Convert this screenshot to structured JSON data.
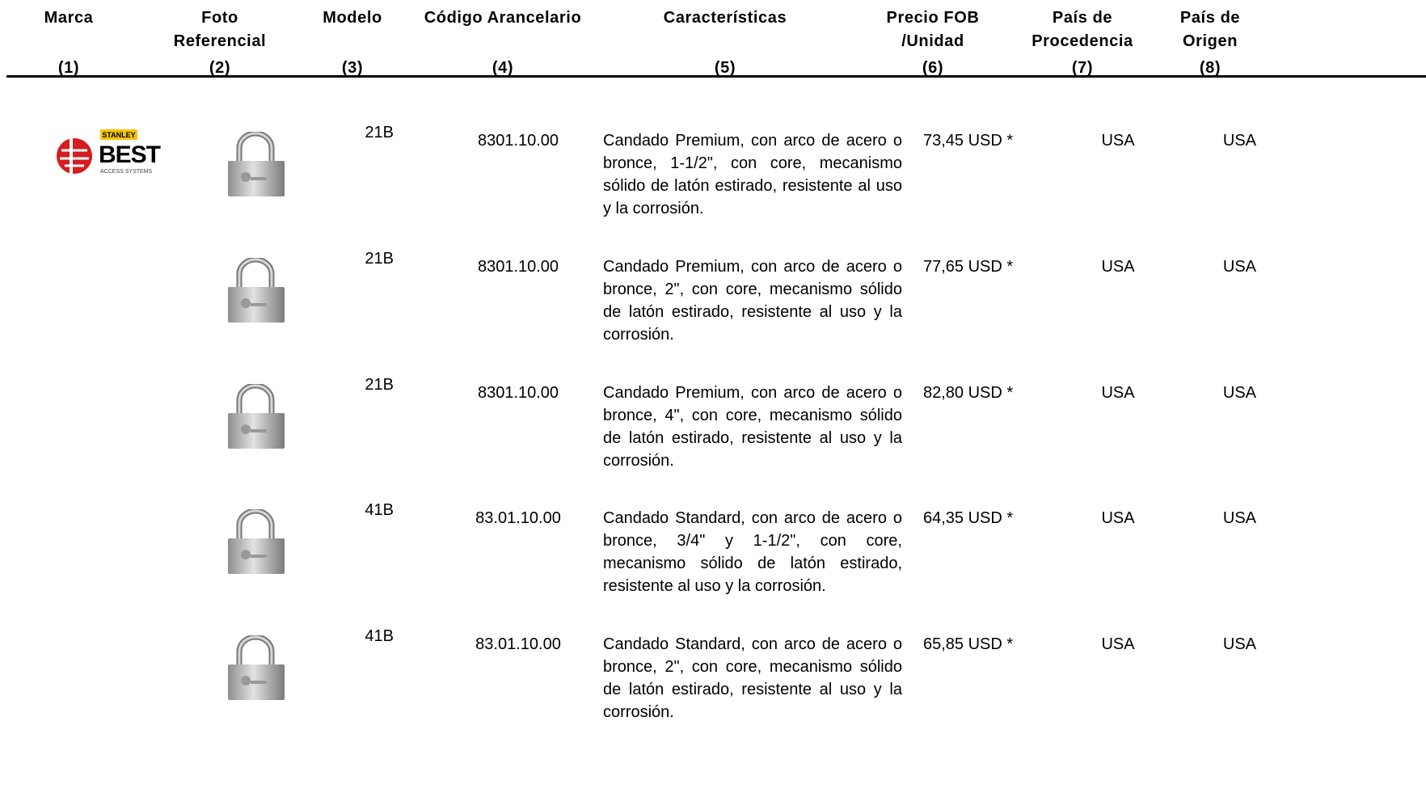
{
  "header": {
    "columns": [
      {
        "title": [
          "Marca"
        ],
        "number": "(1)"
      },
      {
        "title": [
          "Foto",
          "Referencial"
        ],
        "number": "(2)"
      },
      {
        "title": [
          "Modelo"
        ],
        "number": "(3)"
      },
      {
        "title": [
          "Código Arancelario"
        ],
        "number": "(4)"
      },
      {
        "title": [
          "Características"
        ],
        "number": "(5)"
      },
      {
        "title": [
          "Precio FOB",
          "/Unidad"
        ],
        "number": "(6)"
      },
      {
        "title": [
          "País de",
          "Procedencia"
        ],
        "number": "(7)"
      },
      {
        "title": [
          "País de",
          "Origen"
        ],
        "number": "(8)"
      }
    ]
  },
  "brand_logo": {
    "badge": "STANLEY",
    "name": "BEST",
    "tagline": "ACCESS SYSTEMS"
  },
  "rows": [
    {
      "model": "21B",
      "code": "8301.10.00",
      "description": "Candado Premium, con arco de acero o bronce, 1-1/2\", con core, mecanismo sólido de latón estirado, resistente al uso y la corrosión.",
      "price": "73,45 USD *",
      "procedencia": "USA",
      "origen": "USA"
    },
    {
      "model": "21B",
      "code": "8301.10.00",
      "description": "Candado Premium, con arco de acero o bronce, 2\", con core, mecanismo sólido de latón estirado, resistente al uso y la corrosión.",
      "price": "77,65 USD *",
      "procedencia": "USA",
      "origen": "USA"
    },
    {
      "model": "21B",
      "code": "8301.10.00",
      "description": "Candado Premium, con arco de acero o bronce, 4\", con core, mecanismo sólido de latón estirado, resistente al uso y la corrosión.",
      "price": "82,80 USD *",
      "procedencia": "USA",
      "origen": "USA"
    },
    {
      "model": "41B",
      "code": "83.01.10.00",
      "description": "Candado Standard, con arco de acero o bronce, 3/4\" y 1-1/2\", con core, mecanismo sólido de latón estirado, resistente al uso y la corrosión.",
      "price": "64,35 USD *",
      "procedencia": "USA",
      "origen": "USA"
    },
    {
      "model": "41B",
      "code": "83.01.10.00",
      "description": "Candado Standard, con arco de acero o bronce, 2\", con core, mecanismo sólido de latón estirado, resistente al uso y la corrosión.",
      "price": "65,85 USD *",
      "procedencia": "USA",
      "origen": "USA"
    }
  ]
}
